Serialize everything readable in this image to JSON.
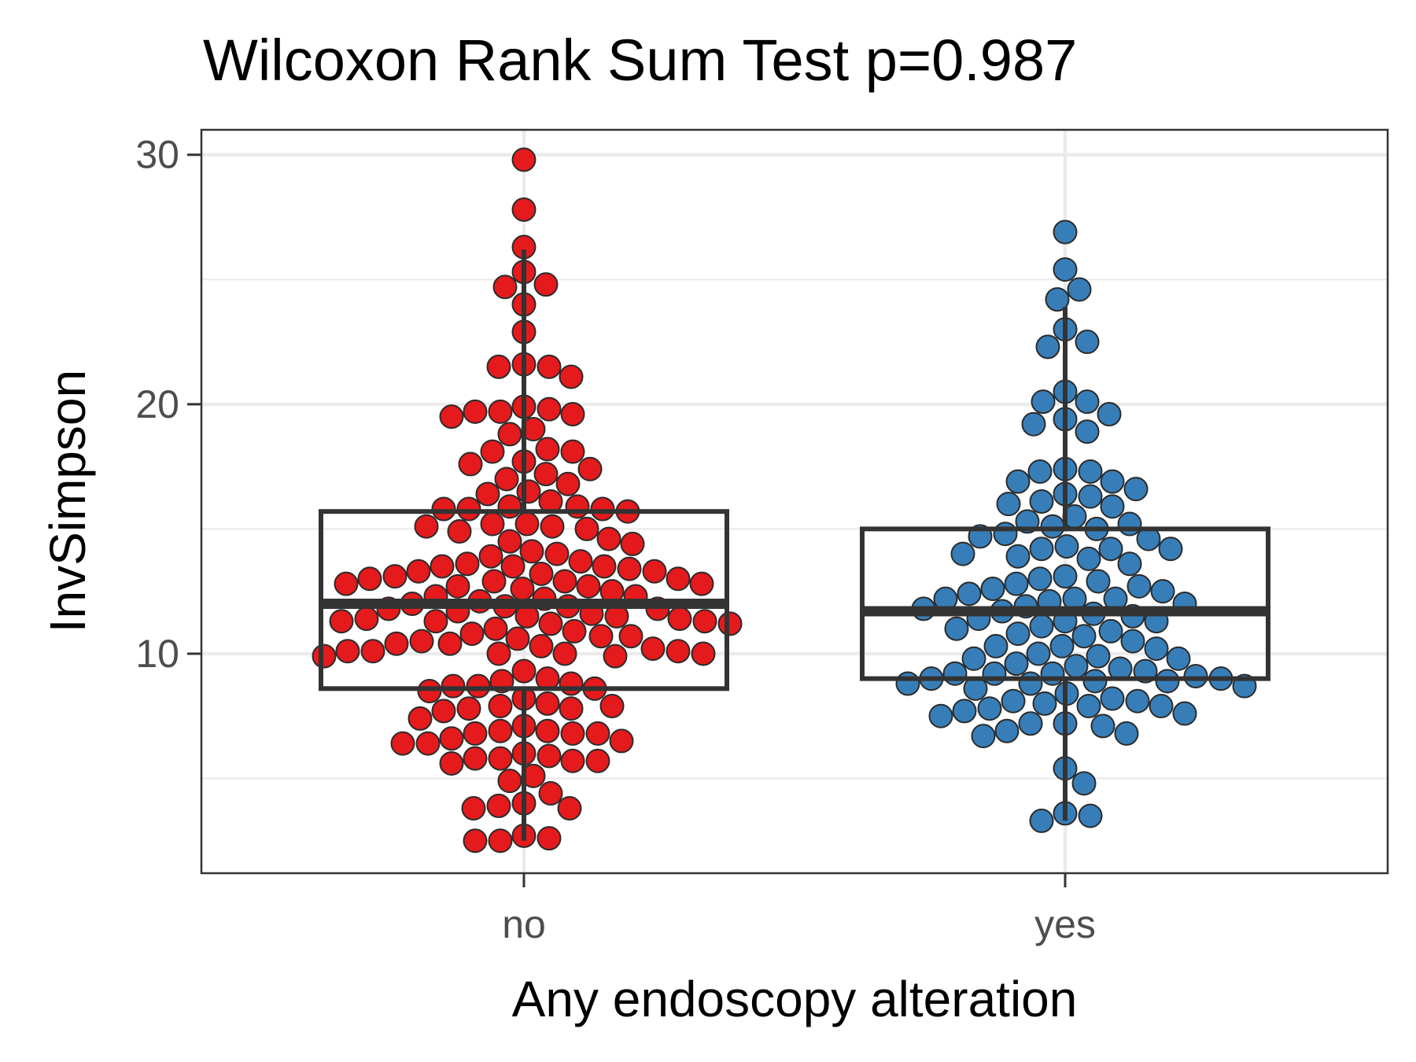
{
  "chart_data": {
    "type": "box-swarm",
    "title": "Wilcoxon Rank Sum Test p=0.987",
    "xlabel": "Any endoscopy alteration",
    "ylabel": "InvSimpson",
    "categories": [
      "no",
      "yes"
    ],
    "ylim": [
      1.2,
      31
    ],
    "y_ticks": [
      10,
      20,
      30
    ],
    "y_tick_labels": [
      "10",
      "20",
      "30"
    ],
    "grid": true,
    "colors": {
      "no": "#e41a1c",
      "yes": "#377eb8",
      "box": "#333333",
      "point_edge": "#2b2b2b"
    },
    "boxes": [
      {
        "category": "no",
        "q1": 8.6,
        "median": 12.0,
        "q3": 15.7,
        "whisker_low": 2.5,
        "whisker_high": 26.2
      },
      {
        "category": "yes",
        "q1": 9.0,
        "median": 11.7,
        "q3": 15.0,
        "whisker_low": 3.3,
        "whisker_high": 23.9
      }
    ],
    "series": [
      {
        "name": "no",
        "values": [
          29.8,
          27.8,
          26.3,
          25.3,
          24.8,
          24.7,
          24.0,
          22.9,
          21.6,
          21.5,
          21.5,
          21.1,
          19.9,
          19.8,
          19.7,
          19.7,
          19.6,
          19.5,
          19.0,
          18.8,
          18.2,
          18.1,
          18.1,
          17.7,
          17.6,
          17.4,
          17.2,
          17.0,
          16.8,
          16.5,
          16.4,
          16.1,
          15.9,
          15.9,
          15.8,
          15.8,
          15.8,
          15.7,
          15.2,
          15.2,
          15.1,
          15.1,
          15.0,
          14.9,
          14.6,
          14.5,
          14.4,
          14.1,
          14.0,
          13.9,
          13.7,
          13.6,
          13.5,
          13.5,
          13.5,
          13.4,
          13.3,
          13.3,
          13.2,
          13.1,
          13.0,
          13.0,
          12.9,
          12.9,
          12.8,
          12.8,
          12.7,
          12.7,
          12.6,
          12.5,
          12.3,
          12.3,
          12.2,
          12.1,
          12.0,
          11.9,
          11.9,
          11.8,
          11.8,
          11.7,
          11.6,
          11.5,
          11.5,
          11.4,
          11.4,
          11.3,
          11.3,
          11.3,
          11.2,
          11.2,
          11.0,
          10.9,
          10.8,
          10.7,
          10.7,
          10.6,
          10.5,
          10.4,
          10.4,
          10.3,
          10.2,
          10.1,
          10.1,
          10.1,
          10.0,
          10.0,
          10.0,
          9.9,
          9.9,
          9.3,
          9.0,
          8.9,
          8.8,
          8.7,
          8.7,
          8.6,
          8.5,
          8.2,
          8.0,
          7.9,
          7.9,
          7.8,
          7.8,
          7.7,
          7.4,
          7.1,
          6.9,
          6.9,
          6.8,
          6.8,
          6.8,
          6.6,
          6.5,
          6.4,
          6.4,
          6.0,
          5.9,
          5.8,
          5.8,
          5.7,
          5.7,
          5.6,
          5.1,
          4.9,
          4.4,
          4.0,
          3.9,
          3.8,
          3.8,
          2.7,
          2.6,
          2.5,
          2.5
        ]
      },
      {
        "name": "yes",
        "values": [
          26.9,
          25.4,
          24.6,
          24.2,
          23.0,
          22.5,
          22.3,
          20.5,
          20.1,
          20.1,
          19.6,
          19.4,
          19.2,
          18.9,
          17.4,
          17.3,
          17.3,
          16.9,
          16.9,
          16.6,
          16.4,
          16.3,
          16.1,
          16.0,
          15.9,
          15.5,
          15.3,
          15.2,
          15.1,
          15.0,
          14.8,
          14.7,
          14.6,
          14.3,
          14.2,
          14.2,
          14.2,
          14.0,
          13.9,
          13.8,
          13.6,
          13.1,
          13.0,
          12.9,
          12.8,
          12.7,
          12.6,
          12.5,
          12.4,
          12.2,
          12.2,
          12.2,
          12.1,
          12.0,
          11.9,
          11.8,
          11.7,
          11.6,
          11.5,
          11.4,
          11.3,
          11.3,
          11.1,
          11.0,
          10.9,
          10.8,
          10.7,
          10.5,
          10.3,
          10.3,
          10.2,
          10.0,
          9.9,
          9.8,
          9.8,
          9.6,
          9.5,
          9.4,
          9.3,
          9.2,
          9.2,
          9.2,
          9.1,
          9.0,
          9.0,
          8.9,
          8.9,
          8.8,
          8.8,
          8.7,
          8.6,
          8.4,
          8.2,
          8.1,
          8.1,
          8.0,
          7.9,
          7.9,
          7.8,
          7.7,
          7.6,
          7.5,
          7.2,
          7.2,
          7.1,
          6.9,
          6.8,
          6.7,
          5.4,
          4.8,
          3.6,
          3.5,
          3.3
        ]
      }
    ]
  }
}
